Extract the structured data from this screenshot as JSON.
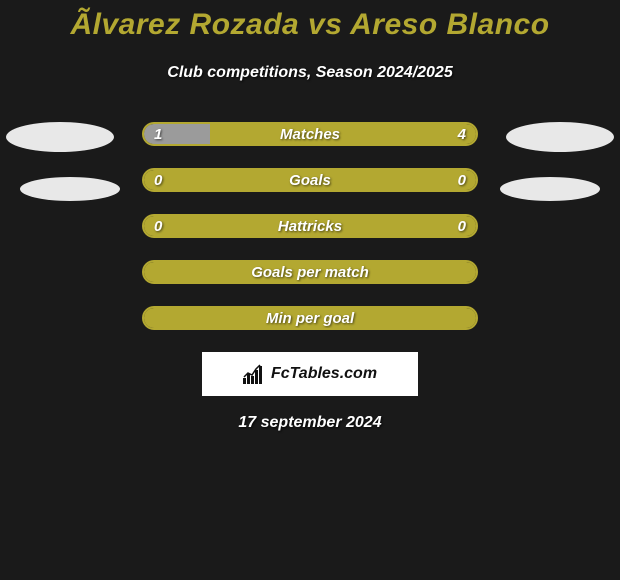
{
  "title": "Ãlvarez Rozada vs Areso Blanco",
  "subtitle": "Club competitions, Season 2024/2025",
  "date": "17 september 2024",
  "logo_text": "FcTables.com",
  "colors": {
    "accent": "#b3a831",
    "accent_border": "#b3a831",
    "bar_bg_dark": "#1a1a1a",
    "left_fill": "#9b9b9b",
    "text": "#ffffff",
    "oval": "#e8e8e8"
  },
  "bars": [
    {
      "label": "Matches",
      "left_value": "1",
      "right_value": "4",
      "left_pct": 20,
      "right_pct": 80,
      "right_color": "#b3a831",
      "left_color": "#9b9b9b",
      "border_color": "#b3a831",
      "show_values": true
    },
    {
      "label": "Goals",
      "left_value": "0",
      "right_value": "0",
      "left_pct": 0,
      "right_pct": 100,
      "right_color": "#b3a831",
      "left_color": "#9b9b9b",
      "border_color": "#b3a831",
      "show_values": true
    },
    {
      "label": "Hattricks",
      "left_value": "0",
      "right_value": "0",
      "left_pct": 0,
      "right_pct": 100,
      "right_color": "#b3a831",
      "left_color": "#9b9b9b",
      "border_color": "#b3a831",
      "show_values": true
    },
    {
      "label": "Goals per match",
      "left_value": "",
      "right_value": "",
      "left_pct": 0,
      "right_pct": 100,
      "right_color": "#b3a831",
      "left_color": "#9b9b9b",
      "border_color": "#b3a831",
      "show_values": false
    },
    {
      "label": "Min per goal",
      "left_value": "",
      "right_value": "",
      "left_pct": 0,
      "right_pct": 100,
      "right_color": "#b3a831",
      "left_color": "#9b9b9b",
      "border_color": "#b3a831",
      "show_values": false
    }
  ]
}
